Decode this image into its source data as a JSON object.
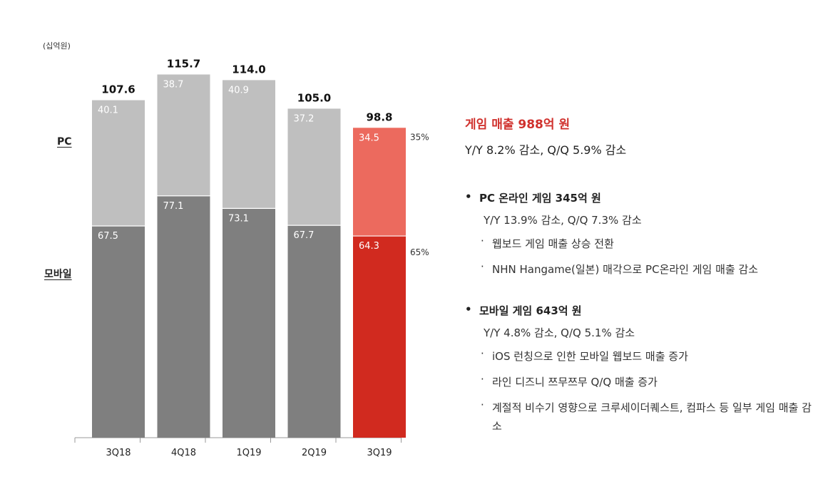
{
  "unit_label": "(십억원)",
  "series_labels": {
    "pc": "PC",
    "mobile": "모바일"
  },
  "colors": {
    "pc_bar": "#bfbfbf",
    "mobile_bar": "#7f7f7f",
    "pc_bar_highlight": "#ec6a5e",
    "mobile_bar_highlight": "#d12a1f",
    "axis": "#999999",
    "headline": "#d0312d"
  },
  "chart_data": {
    "type": "bar",
    "stacked": true,
    "categories": [
      "3Q18",
      "4Q18",
      "1Q19",
      "2Q19",
      "3Q19"
    ],
    "series": [
      {
        "name": "모바일",
        "values": [
          67.5,
          77.1,
          73.1,
          67.7,
          64.3
        ]
      },
      {
        "name": "PC",
        "values": [
          40.1,
          38.7,
          40.9,
          37.2,
          34.5
        ]
      }
    ],
    "totals": [
      "107.6",
      "115.7",
      "114.0",
      "105.0",
      "98.8"
    ],
    "value_labels": {
      "mobile": [
        "67.5",
        "77.1",
        "73.1",
        "67.7",
        "64.3"
      ],
      "pc": [
        "40.1",
        "38.7",
        "40.9",
        "37.2",
        "34.5"
      ]
    },
    "share_labels": {
      "pc": "35%",
      "mobile": "65%"
    },
    "highlight_index": 4,
    "ylim": [
      0,
      120
    ],
    "title": "",
    "xlabel": "",
    "ylabel": ""
  },
  "panel": {
    "headline": "게임 매출  988억 원",
    "summary": "Y/Y 8.2% 감소, Q/Q 5.9% 감소",
    "sections": [
      {
        "title": "PC 온라인 게임 345억 원",
        "sub": "Y/Y 13.9% 감소, Q/Q 7.3% 감소",
        "items": [
          "웹보드 게임 매출 상승 전환",
          "NHN Hangame(일본) 매각으로 PC온라인 게임 매출 감소"
        ]
      },
      {
        "title": "모바일 게임 643억 원",
        "sub": "Y/Y 4.8% 감소, Q/Q 5.1% 감소",
        "items": [
          "iOS 런칭으로 인한 모바일 웹보드 매출 증가",
          "라인 디즈니 쯔무쯔무 Q/Q 매출 증가",
          "계절적 비수기 영향으로 크루세이더퀘스트, 컴파스 등 일부 게임 매출 감소"
        ]
      }
    ],
    "bullet": "•",
    "item_mark": "·"
  }
}
